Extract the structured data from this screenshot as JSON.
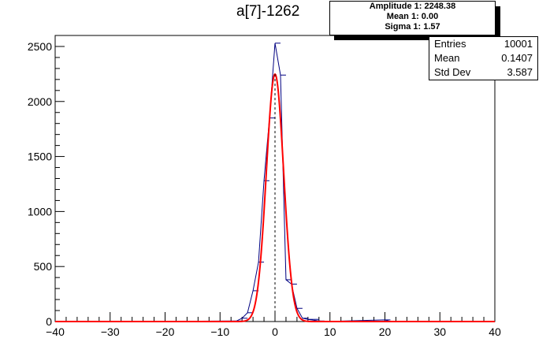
{
  "title": "a[7]-1262",
  "fit_box": {
    "line1": "Amplitude 1: 2248.38",
    "line2": "Mean 1: 0.00",
    "line3": "Sigma 1: 1.57"
  },
  "stats_box": {
    "rows": [
      {
        "key": "Entries",
        "value": "10001"
      },
      {
        "key": "Mean",
        "value": "0.1407"
      },
      {
        "key": "Std Dev",
        "value": "3.587"
      }
    ]
  },
  "colors": {
    "histogram": "#000080",
    "fit": "#ff0000",
    "axis": "#000000",
    "mean_line": "#000000"
  },
  "chart_data": {
    "type": "histogram",
    "title": "a[7]-1262",
    "xlim": [
      -40,
      40
    ],
    "ylim": [
      0,
      2600
    ],
    "x_ticks": [
      -40,
      -30,
      -20,
      -10,
      0,
      10,
      20,
      30,
      40
    ],
    "y_ticks": [
      0,
      500,
      1000,
      1500,
      2000,
      2500
    ],
    "bin_width": 1,
    "bins": [
      {
        "x0": -7,
        "value": 5
      },
      {
        "x0": -6,
        "value": 30
      },
      {
        "x0": -5,
        "value": 80
      },
      {
        "x0": -4,
        "value": 280
      },
      {
        "x0": -3,
        "value": 540
      },
      {
        "x0": -2,
        "value": 1280
      },
      {
        "x0": -1,
        "value": 1850
      },
      {
        "x0": 0,
        "value": 2530
      },
      {
        "x0": 1,
        "value": 2240
      },
      {
        "x0": 2,
        "value": 380
      },
      {
        "x0": 3,
        "value": 340
      },
      {
        "x0": 4,
        "value": 120
      },
      {
        "x0": 5,
        "value": 30
      },
      {
        "x0": 6,
        "value": 20
      },
      {
        "x0": 7,
        "value": 20
      },
      {
        "x0": 8,
        "value": 5
      },
      {
        "x0": 20,
        "value": 15
      }
    ],
    "fit": {
      "function": "gaus",
      "amplitude": 2248.38,
      "mean": 0.0,
      "sigma": 1.57
    },
    "mean_marker_x": 0
  }
}
